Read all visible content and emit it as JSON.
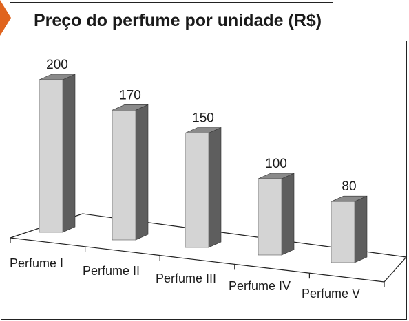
{
  "title": "Preço do perfume por unidade (R$)",
  "colors": {
    "bar_front": "#d4d4d4",
    "bar_side": "#5e5e5e",
    "bar_top": "#8a8a8a",
    "accent": "#e0641e",
    "line": "#222222"
  },
  "chart_data": {
    "type": "bar",
    "title": "Preço do perfume por unidade (R$)",
    "categories": [
      "Perfume I",
      "Perfume II",
      "Perfume III",
      "Perfume IV",
      "Perfume V"
    ],
    "values": [
      200,
      170,
      150,
      100,
      80
    ],
    "xlabel": "",
    "ylabel": "",
    "ylim": [
      0,
      200
    ],
    "grid": false,
    "legend": "none"
  }
}
